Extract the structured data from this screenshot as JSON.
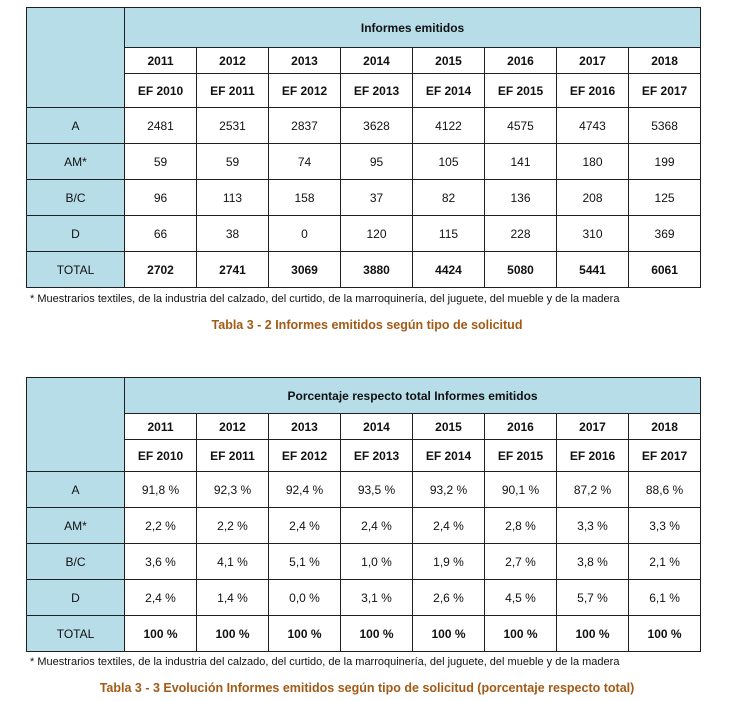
{
  "table1": {
    "header": "Informes emitidos",
    "years": [
      "2011",
      "2012",
      "2013",
      "2014",
      "2015",
      "2016",
      "2017",
      "2018"
    ],
    "ef": [
      "EF 2010",
      "EF 2011",
      "EF 2012",
      "EF 2013",
      "EF 2014",
      "EF 2015",
      "EF 2016",
      "EF 2017"
    ],
    "rows": [
      {
        "label": "A",
        "values": [
          "2481",
          "2531",
          "2837",
          "3628",
          "4122",
          "4575",
          "4743",
          "5368"
        ]
      },
      {
        "label": "AM*",
        "values": [
          "59",
          "59",
          "74",
          "95",
          "105",
          "141",
          "180",
          "199"
        ]
      },
      {
        "label": "B/C",
        "values": [
          "96",
          "113",
          "158",
          "37",
          "82",
          "136",
          "208",
          "125"
        ]
      },
      {
        "label": "D",
        "values": [
          "66",
          "38",
          "0",
          "120",
          "115",
          "228",
          "310",
          "369"
        ]
      },
      {
        "label": "TOTAL",
        "values": [
          "2702",
          "2741",
          "3069",
          "3880",
          "4424",
          "5080",
          "5441",
          "6061"
        ]
      }
    ],
    "note": "* Muestrarios textiles, de la industria del calzado, del curtido, de la marroquinería, del juguete, del mueble y de la madera",
    "caption": "Tabla 3 - 2  Informes emitidos según tipo de solicitud"
  },
  "table2": {
    "header": "Porcentaje respecto total Informes emitidos",
    "years": [
      "2011",
      "2012",
      "2013",
      "2014",
      "2015",
      "2016",
      "2017",
      "2018"
    ],
    "ef": [
      "EF 2010",
      "EF 2011",
      "EF 2012",
      "EF 2013",
      "EF 2014",
      "EF 2015",
      "EF 2016",
      "EF 2017"
    ],
    "rows": [
      {
        "label": "A",
        "values": [
          "91,8 %",
          "92,3 %",
          "92,4 %",
          "93,5 %",
          "93,2 %",
          "90,1 %",
          "87,2 %",
          "88,6 %"
        ]
      },
      {
        "label": "AM*",
        "values": [
          "2,2 %",
          "2,2 %",
          "2,4 %",
          "2,4 %",
          "2,4 %",
          "2,8 %",
          "3,3 %",
          "3,3 %"
        ]
      },
      {
        "label": "B/C",
        "values": [
          "3,6 %",
          "4,1 %",
          "5,1 %",
          "1,0 %",
          "1,9 %",
          "2,7 %",
          "3,8 %",
          "2,1 %"
        ]
      },
      {
        "label": "D",
        "values": [
          "2,4 %",
          "1,4 %",
          "0,0 %",
          "3,1 %",
          "2,6 %",
          "4,5 %",
          "5,7 %",
          "6,1 %"
        ]
      },
      {
        "label": "TOTAL",
        "values": [
          "100 %",
          "100 %",
          "100 %",
          "100 %",
          "100 %",
          "100 %",
          "100 %",
          "100 %"
        ]
      }
    ],
    "note": "* Muestrarios textiles, de la industria del calzado, del curtido, de la marroquinería, del juguete, del mueble y de la madera",
    "caption": "Tabla 3 - 3  Evolución Informes emitidos según tipo de solicitud (porcentaje respecto total)"
  }
}
